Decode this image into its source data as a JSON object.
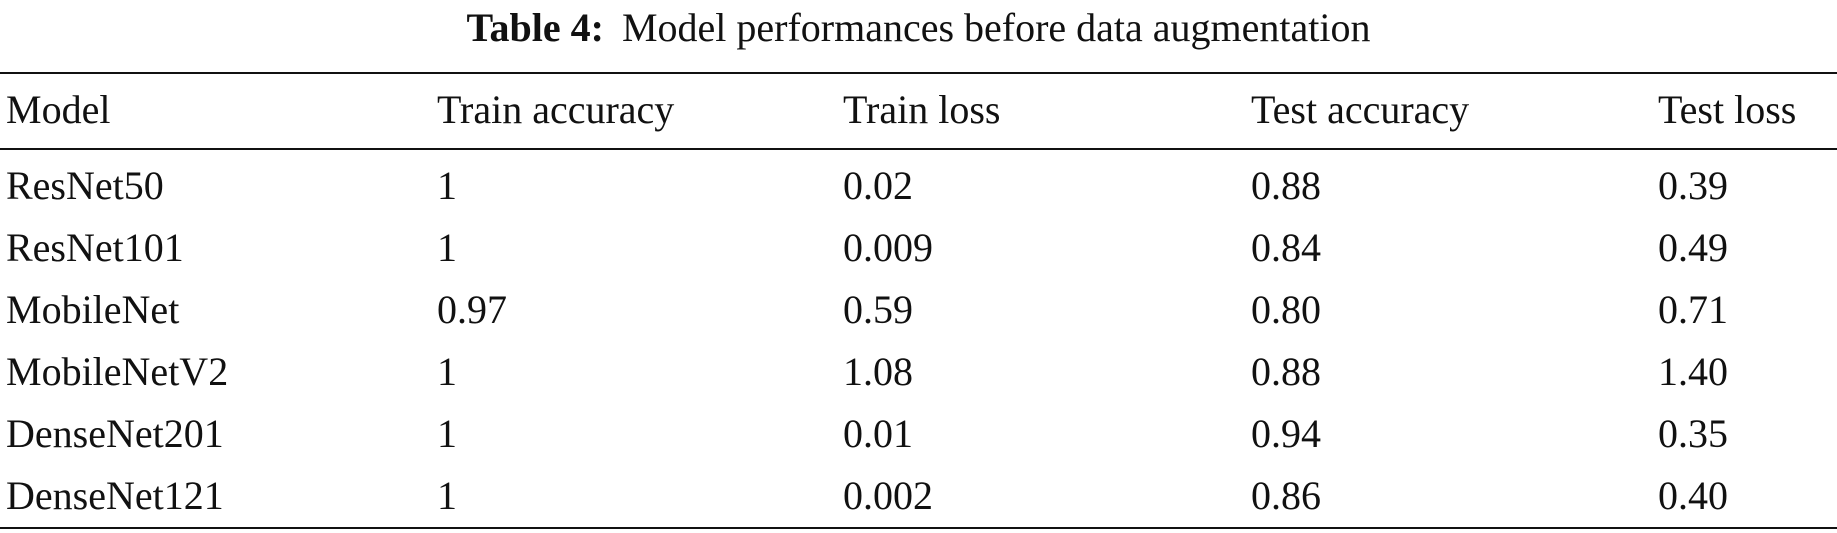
{
  "caption": {
    "label": "Table 4:",
    "text": "Model performances before data augmentation"
  },
  "table": {
    "headers": [
      "Model",
      "Train accuracy",
      "Train loss",
      "Test accuracy",
      "Test loss"
    ],
    "rows": [
      [
        "ResNet50",
        "1",
        "0.02",
        "0.88",
        "0.39"
      ],
      [
        "ResNet101",
        "1",
        "0.009",
        "0.84",
        "0.49"
      ],
      [
        "MobileNet",
        "0.97",
        "0.59",
        "0.80",
        "0.71"
      ],
      [
        "MobileNetV2",
        "1",
        "1.08",
        "0.88",
        "1.40"
      ],
      [
        "DenseNet201",
        "1",
        "0.01",
        "0.94",
        "0.35"
      ],
      [
        "DenseNet121",
        "1",
        "0.002",
        "0.86",
        "0.40"
      ]
    ]
  }
}
